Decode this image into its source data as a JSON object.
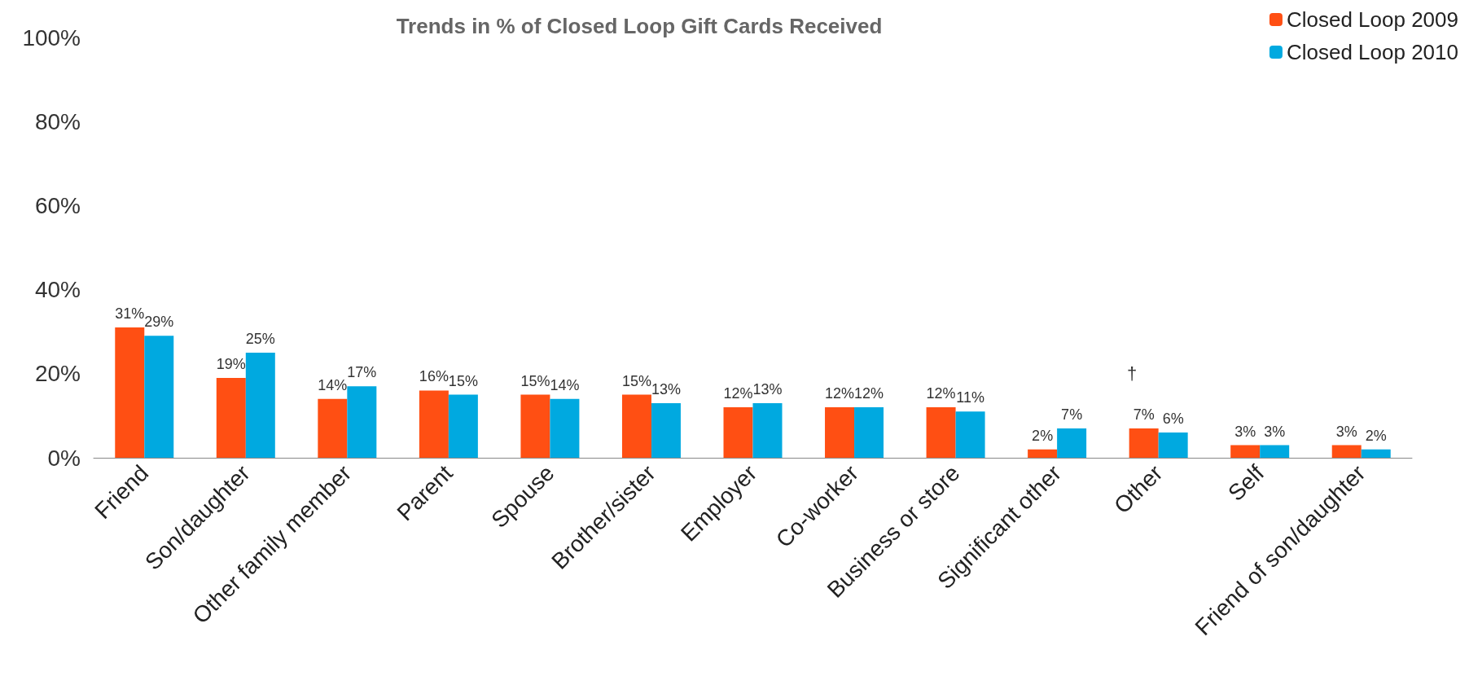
{
  "chart_data": {
    "type": "bar",
    "title": "Trends in % of Closed Loop Gift Cards Received",
    "categories": [
      "Friend",
      "Son/daughter",
      "Other family member",
      "Parent",
      "Spouse",
      "Brother/sister",
      "Employer",
      "Co-worker",
      "Business or store",
      "Significant other",
      "Other",
      "Self",
      "Friend of son/daughter"
    ],
    "series": [
      {
        "name": "Closed Loop 2009",
        "color": "#ff4f13",
        "values": [
          31,
          19,
          14,
          16,
          15,
          15,
          12,
          12,
          12,
          2,
          7,
          3,
          3
        ],
        "value_labels": [
          "31%",
          "19%",
          "14%",
          "16%",
          "15%",
          "15%",
          "12%",
          "12%",
          "12%",
          "2%",
          "7%",
          "3%",
          "3%"
        ]
      },
      {
        "name": "Closed Loop 2010",
        "color": "#00a9e0",
        "values": [
          29,
          25,
          17,
          15,
          14,
          13,
          13,
          12,
          11,
          7,
          6,
          3,
          2
        ],
        "value_labels": [
          "29%",
          "25%",
          "17%",
          "15%",
          "14%",
          "13%",
          "13%",
          "12%",
          "11%",
          "7%",
          "6%",
          "3%",
          "2%"
        ]
      }
    ],
    "ylim": [
      0,
      100
    ],
    "yticks": [
      {
        "value": 0,
        "label": "0%"
      },
      {
        "value": 20,
        "label": "20%"
      },
      {
        "value": 40,
        "label": "40%"
      },
      {
        "value": 60,
        "label": "60%"
      },
      {
        "value": 80,
        "label": "80%"
      },
      {
        "value": 100,
        "label": "100%"
      }
    ],
    "annotations": [
      "†"
    ],
    "grid": false,
    "legend": "top right"
  }
}
